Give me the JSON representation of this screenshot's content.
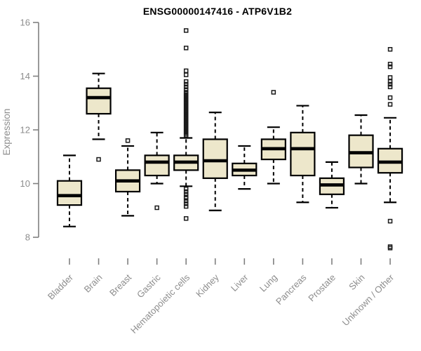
{
  "colors": {
    "background": "#ffffff",
    "box_fill": "#ede7cb",
    "box_border": "#000000",
    "median": "#000000",
    "whisker": "#000000",
    "outlier": "#1a1a1a",
    "axis_line": "#808080",
    "tick_label": "#8d8d8d",
    "title_color": "#000000"
  },
  "chart_data": {
    "type": "boxplot",
    "title": "ENSG00000147416 - ATP6V1B2",
    "xlabel": "",
    "ylabel": "Expression",
    "ylim": [
      7.4,
      16.2
    ],
    "axis_range": [
      8,
      16
    ],
    "y_ticks": [
      8,
      10,
      12,
      14,
      16
    ],
    "grid": false,
    "legend": "none",
    "categories": [
      "Bladder",
      "Brain",
      "Breast",
      "Gastric",
      "Hematopoietic cells",
      "Kidney",
      "Liver",
      "Lung",
      "Pancreas",
      "Prostate",
      "Skin",
      "Unknown / Other"
    ],
    "series": [
      {
        "name": "Bladder",
        "low": 8.4,
        "q1": 9.2,
        "median": 9.55,
        "q3": 10.1,
        "high": 11.05,
        "outliers": []
      },
      {
        "name": "Brain",
        "low": 11.65,
        "q1": 12.6,
        "median": 13.2,
        "q3": 13.55,
        "high": 14.1,
        "outliers": [
          10.9
        ]
      },
      {
        "name": "Breast",
        "low": 8.8,
        "q1": 9.7,
        "median": 10.1,
        "q3": 10.5,
        "high": 11.4,
        "outliers": [
          11.6
        ]
      },
      {
        "name": "Gastric",
        "low": 10.0,
        "q1": 10.3,
        "median": 10.8,
        "q3": 11.05,
        "high": 11.9,
        "outliers": [
          9.1
        ]
      },
      {
        "name": "Hematopoietic cells",
        "low": 9.9,
        "q1": 10.5,
        "median": 10.8,
        "q3": 11.05,
        "high": 11.7,
        "outliers": [
          11.8,
          11.85,
          11.9,
          11.95,
          12.0,
          12.05,
          12.1,
          12.15,
          12.2,
          12.25,
          12.3,
          12.35,
          12.4,
          12.45,
          12.5,
          12.55,
          12.6,
          12.65,
          12.7,
          12.75,
          12.8,
          12.85,
          12.9,
          12.95,
          13.0,
          13.05,
          13.1,
          13.15,
          13.2,
          13.25,
          13.3,
          13.35,
          13.4,
          13.5,
          13.6,
          13.7,
          13.8,
          14.05,
          14.2,
          15.05,
          15.7,
          9.8,
          9.7,
          9.6,
          9.5,
          9.45,
          9.35,
          9.25,
          9.15,
          8.7
        ]
      },
      {
        "name": "Kidney",
        "low": 9.0,
        "q1": 10.2,
        "median": 10.85,
        "q3": 11.65,
        "high": 12.65,
        "outliers": []
      },
      {
        "name": "Liver",
        "low": 9.8,
        "q1": 10.3,
        "median": 10.5,
        "q3": 10.75,
        "high": 11.4,
        "outliers": []
      },
      {
        "name": "Lung",
        "low": 10.0,
        "q1": 10.9,
        "median": 11.3,
        "q3": 11.65,
        "high": 12.1,
        "outliers": [
          13.4
        ]
      },
      {
        "name": "Pancreas",
        "low": 9.3,
        "q1": 10.3,
        "median": 11.3,
        "q3": 11.9,
        "high": 12.9,
        "outliers": []
      },
      {
        "name": "Prostate",
        "low": 9.1,
        "q1": 9.6,
        "median": 9.95,
        "q3": 10.2,
        "high": 10.8,
        "outliers": []
      },
      {
        "name": "Skin",
        "low": 10.0,
        "q1": 10.6,
        "median": 11.15,
        "q3": 11.8,
        "high": 12.55,
        "outliers": []
      },
      {
        "name": "Unknown / Other",
        "low": 9.3,
        "q1": 10.4,
        "median": 10.8,
        "q3": 11.3,
        "high": 12.45,
        "outliers": [
          15.0,
          14.45,
          14.35,
          13.95,
          13.8,
          13.7,
          13.6,
          13.2,
          12.95,
          8.6,
          7.65,
          7.6
        ]
      }
    ]
  }
}
